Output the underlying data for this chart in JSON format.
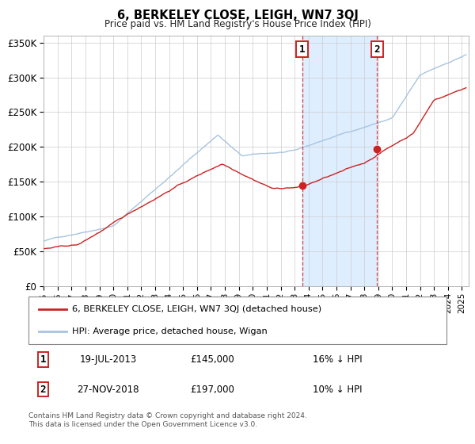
{
  "title": "6, BERKELEY CLOSE, LEIGH, WN7 3QJ",
  "subtitle": "Price paid vs. HM Land Registry's House Price Index (HPI)",
  "legend_line1": "6, BERKELEY CLOSE, LEIGH, WN7 3QJ (detached house)",
  "legend_line2": "HPI: Average price, detached house, Wigan",
  "sale1_date": "19-JUL-2013",
  "sale1_price": 145000,
  "sale1_hpi": "16% ↓ HPI",
  "sale2_date": "27-NOV-2018",
  "sale2_price": 197000,
  "sale2_hpi": "10% ↓ HPI",
  "footnote1": "Contains HM Land Registry data © Crown copyright and database right 2024.",
  "footnote2": "This data is licensed under the Open Government Licence v3.0.",
  "hpi_color": "#a8c4e0",
  "price_color": "#cc2222",
  "highlight_bg": "#deeeff",
  "sale1_x": 2013.54,
  "sale2_x": 2018.92,
  "ylim_max": 360000,
  "xlim_min": 1995.0,
  "xlim_max": 2025.5
}
